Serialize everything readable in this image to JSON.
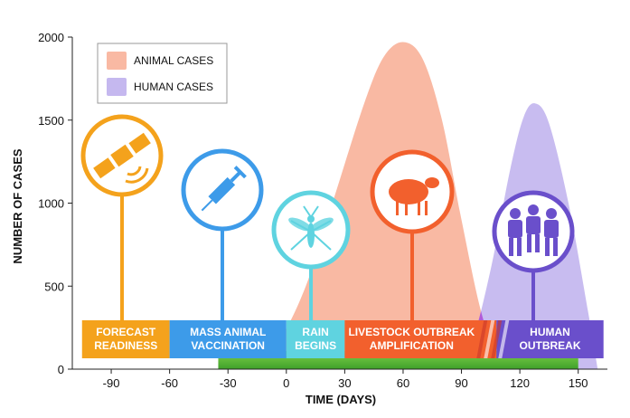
{
  "chart_data": {
    "type": "area",
    "title": "",
    "xlabel": "TIME (DAYS)",
    "ylabel": "NUMBER OF CASES",
    "xlim": [
      -110,
      165
    ],
    "ylim": [
      0,
      2000
    ],
    "x_ticks": [
      "-90",
      "-60",
      "-30",
      "0",
      "30",
      "60",
      "90",
      "120",
      "150"
    ],
    "y_ticks": [
      "0",
      "500",
      "1000",
      "1500",
      "2000"
    ],
    "legend_position": "top-left",
    "grid": false,
    "series": [
      {
        "name": "ANIMAL CASES",
        "color": "#f9b9a3",
        "x": [
          -35,
          -20,
          -5,
          10,
          25,
          40,
          50,
          60,
          70,
          80,
          90,
          100,
          110
        ],
        "y": [
          0,
          20,
          150,
          500,
          1050,
          1600,
          1880,
          1970,
          1870,
          1500,
          900,
          350,
          0
        ]
      },
      {
        "name": "HUMAN CASES",
        "color": "#c5b8ef",
        "x": [
          85,
          95,
          105,
          115,
          122,
          128,
          135,
          145,
          155,
          160
        ],
        "y": [
          0,
          150,
          600,
          1200,
          1520,
          1600,
          1480,
          1000,
          350,
          0
        ]
      }
    ],
    "phases": [
      {
        "lines": [
          "FORECAST",
          "READINESS"
        ],
        "x_start": -105,
        "x_end": -60,
        "color": "#f4a21c",
        "icon": "satellite-icon"
      },
      {
        "lines": [
          "MASS ANIMAL",
          "VACCINATION"
        ],
        "x_start": -60,
        "x_end": 0,
        "color": "#3d9be9",
        "icon": "syringe-icon"
      },
      {
        "lines": [
          "RAIN",
          "BEGINS"
        ],
        "x_start": 0,
        "x_end": 30,
        "color": "#5fd3e0",
        "icon": "mosquito-icon"
      },
      {
        "lines": [
          "LIVESTOCK OUTBREAK",
          "AMPLIFICATION"
        ],
        "x_start": 30,
        "x_end": 108,
        "color": "#f2602d",
        "icon": "sheep-icon"
      },
      {
        "lines": [
          "HUMAN",
          "OUTBREAK"
        ],
        "x_start": 108,
        "x_end": 163,
        "color": "#6a4fcb",
        "icon": "people-icon"
      }
    ]
  }
}
